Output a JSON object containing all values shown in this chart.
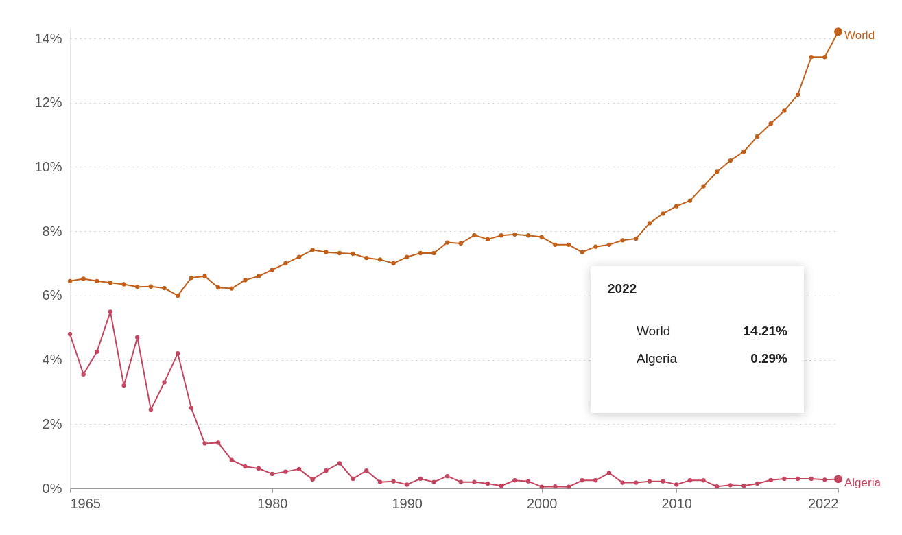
{
  "chart_data": {
    "type": "line",
    "x": [
      1965,
      1966,
      1967,
      1968,
      1969,
      1970,
      1971,
      1972,
      1973,
      1974,
      1975,
      1976,
      1977,
      1978,
      1979,
      1980,
      1981,
      1982,
      1983,
      1984,
      1985,
      1986,
      1987,
      1988,
      1989,
      1990,
      1991,
      1992,
      1993,
      1994,
      1995,
      1996,
      1997,
      1998,
      1999,
      2000,
      2001,
      2002,
      2003,
      2004,
      2005,
      2006,
      2007,
      2008,
      2009,
      2010,
      2011,
      2012,
      2013,
      2014,
      2015,
      2016,
      2017,
      2018,
      2019,
      2020,
      2021,
      2022
    ],
    "series": [
      {
        "name": "World",
        "color": "#c0601a",
        "values": [
          6.45,
          6.52,
          6.45,
          6.4,
          6.35,
          6.27,
          6.28,
          6.23,
          6.0,
          6.55,
          6.6,
          6.25,
          6.22,
          6.48,
          6.6,
          6.8,
          7.0,
          7.2,
          7.42,
          7.35,
          7.32,
          7.3,
          7.17,
          7.12,
          7.0,
          7.2,
          7.32,
          7.32,
          7.65,
          7.62,
          7.88,
          7.75,
          7.87,
          7.9,
          7.87,
          7.82,
          7.58,
          7.58,
          7.35,
          7.52,
          7.58,
          7.72,
          7.77,
          8.25,
          8.55,
          8.78,
          8.95,
          9.4,
          9.85,
          10.2,
          10.48,
          10.95,
          11.35,
          11.75,
          12.25,
          13.42,
          13.42,
          14.21
        ]
      },
      {
        "name": "Algeria",
        "color": "#c4455f",
        "values": [
          4.8,
          3.55,
          4.25,
          5.5,
          3.2,
          4.7,
          2.45,
          3.3,
          4.2,
          2.5,
          1.4,
          1.42,
          0.88,
          0.68,
          0.62,
          0.45,
          0.52,
          0.6,
          0.28,
          0.55,
          0.78,
          0.3,
          0.55,
          0.2,
          0.22,
          0.12,
          0.3,
          0.2,
          0.38,
          0.2,
          0.2,
          0.15,
          0.08,
          0.25,
          0.22,
          0.05,
          0.06,
          0.05,
          0.25,
          0.25,
          0.48,
          0.18,
          0.18,
          0.22,
          0.22,
          0.12,
          0.25,
          0.25,
          0.06,
          0.1,
          0.08,
          0.15,
          0.26,
          0.3,
          0.3,
          0.3,
          0.27,
          0.29
        ]
      }
    ],
    "xlim": [
      1965,
      2022
    ],
    "xticks": [
      1965,
      1980,
      1990,
      2000,
      2010,
      2022
    ],
    "ylim": [
      0,
      14.3
    ],
    "yticks": [
      {
        "value": 0,
        "label": "0%"
      },
      {
        "value": 2,
        "label": "2%"
      },
      {
        "value": 4,
        "label": "4%"
      },
      {
        "value": 6,
        "label": "6%"
      },
      {
        "value": 8,
        "label": "8%"
      },
      {
        "value": 10,
        "label": "10%"
      },
      {
        "value": 12,
        "label": "12%"
      },
      {
        "value": 14,
        "label": "14%"
      }
    ],
    "annotations": [
      "2022",
      "14.21%",
      "0.29%"
    ],
    "grid": "y",
    "legend": false,
    "marker": "circle",
    "line_style": "solid"
  }
}
